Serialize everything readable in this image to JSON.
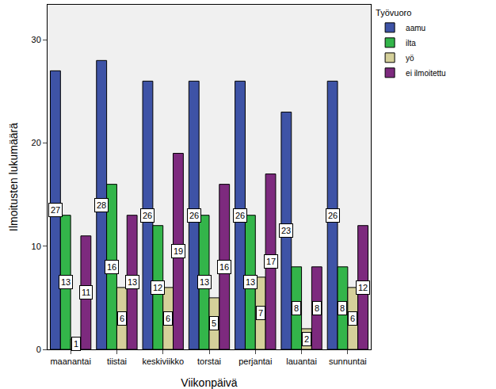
{
  "chart_data": {
    "type": "bar",
    "x_label": "Viikonpäivä",
    "y_label": "Ilmoitusten lukumäärä",
    "legend_title": "Työvuoro",
    "categories": [
      "maanantai",
      "tiistai",
      "keskiviikko",
      "torstai",
      "perjantai",
      "lauantai",
      "sunnuntai"
    ],
    "series": [
      {
        "name": "aamu",
        "color": "#3e53a6",
        "values": [
          27,
          28,
          26,
          26,
          26,
          23,
          26
        ]
      },
      {
        "name": "ilta",
        "color": "#33b54a",
        "values": [
          13,
          16,
          12,
          13,
          13,
          8,
          8
        ]
      },
      {
        "name": "yö",
        "color": "#d5d09a",
        "values": [
          1,
          6,
          6,
          5,
          7,
          2,
          6
        ]
      },
      {
        "name": "ei ilmoitettu",
        "color": "#7d2a7e",
        "values": [
          11,
          13,
          19,
          16,
          17,
          8,
          12
        ]
      }
    ],
    "ylim": [
      0,
      33.4
    ],
    "yticks": [
      0,
      10,
      20,
      30
    ],
    "grid": false,
    "legend": "right",
    "data_labels": true
  }
}
